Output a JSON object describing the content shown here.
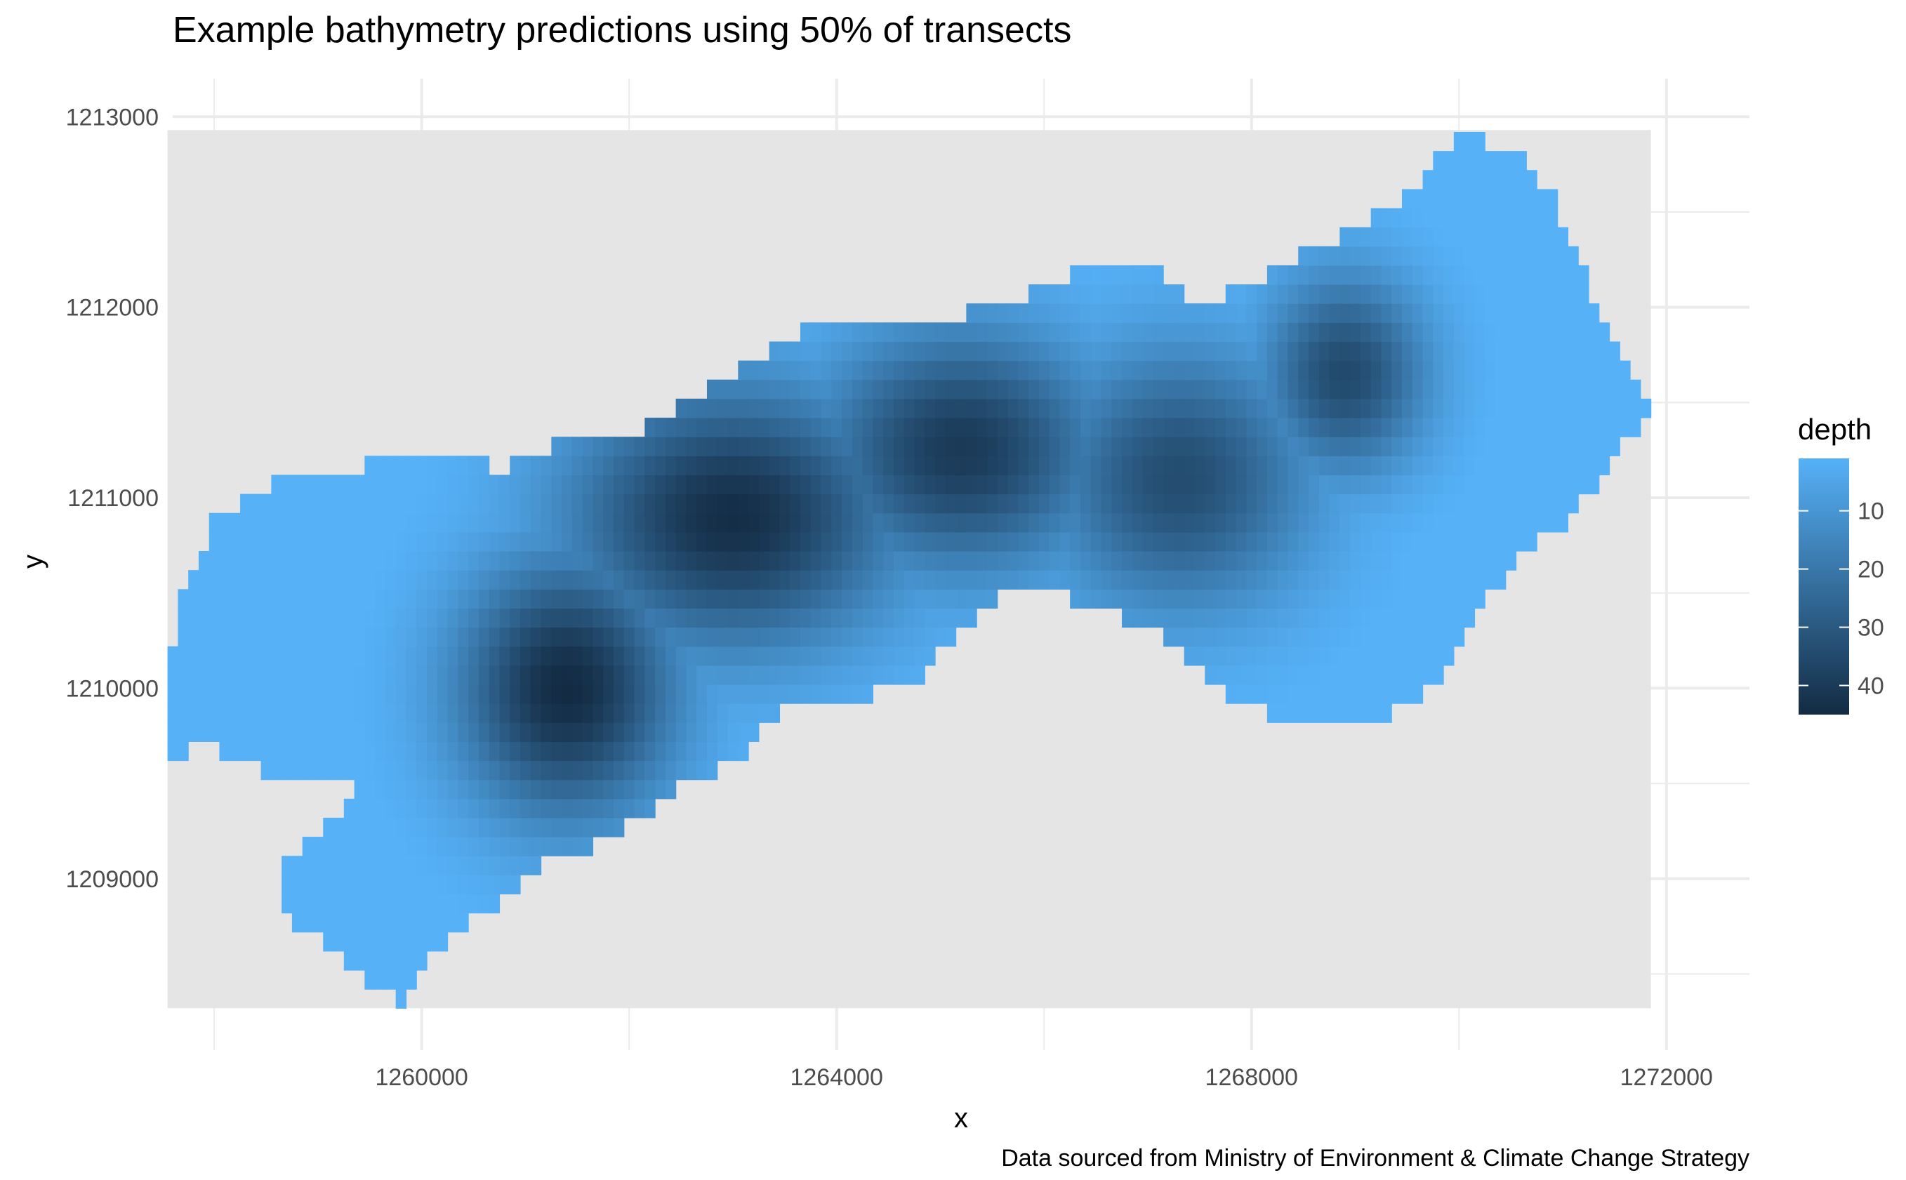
{
  "chart_data": {
    "type": "heatmap",
    "title": "Example bathymetry predictions using 50% of transects",
    "xlabel": "x",
    "ylabel": "y",
    "caption": "Data sourced from Ministry of Environment & Climate Change Strategy",
    "xlim": [
      1257600,
      1272800
    ],
    "ylim": [
      1208100,
      1213200
    ],
    "x_ticks": [
      1260000,
      1264000,
      1268000,
      1272000
    ],
    "x_tick_labels": [
      "1260000",
      "1264000",
      "1268000",
      "1272000"
    ],
    "y_ticks": [
      1209000,
      1210000,
      1211000,
      1212000,
      1213000
    ],
    "y_tick_labels": [
      "1209000",
      "1210000",
      "1211000",
      "1212000",
      "1213000"
    ],
    "panel_extent": {
      "x": [
        1257550,
        1271850
      ],
      "y": [
        1208320,
        1212930
      ]
    },
    "grid": true,
    "panel_background": "#e5e5e5",
    "legend": {
      "title": "depth",
      "position": "right",
      "ticks": [
        10,
        20,
        30,
        40
      ],
      "tick_labels": [
        "10",
        "20",
        "30",
        "40"
      ],
      "range": [
        1,
        45
      ],
      "color_low": "#56b1f7",
      "color_high": "#132b43"
    },
    "cell_size": 100,
    "lake_outline": [
      [
        1257550,
        1210100
      ],
      [
        1257700,
        1210500
      ],
      [
        1258000,
        1210900
      ],
      [
        1258700,
        1211100
      ],
      [
        1259300,
        1211150
      ],
      [
        1259800,
        1211200
      ],
      [
        1260300,
        1211250
      ],
      [
        1260800,
        1211150
      ],
      [
        1261400,
        1211300
      ],
      [
        1262000,
        1211300
      ],
      [
        1262500,
        1211500
      ],
      [
        1263000,
        1211650
      ],
      [
        1263700,
        1211900
      ],
      [
        1264200,
        1211950
      ],
      [
        1264800,
        1211900
      ],
      [
        1265400,
        1212000
      ],
      [
        1266000,
        1212100
      ],
      [
        1266500,
        1212250
      ],
      [
        1267000,
        1212250
      ],
      [
        1267500,
        1212000
      ],
      [
        1268100,
        1212150
      ],
      [
        1268500,
        1212300
      ],
      [
        1269000,
        1212400
      ],
      [
        1269500,
        1212600
      ],
      [
        1270000,
        1212900
      ],
      [
        1270500,
        1212850
      ],
      [
        1270900,
        1212600
      ],
      [
        1271200,
        1212200
      ],
      [
        1271500,
        1211800
      ],
      [
        1271850,
        1211450
      ],
      [
        1271500,
        1211200
      ],
      [
        1271100,
        1210900
      ],
      [
        1270600,
        1210700
      ],
      [
        1270200,
        1210400
      ],
      [
        1269800,
        1210000
      ],
      [
        1269300,
        1209850
      ],
      [
        1268700,
        1209850
      ],
      [
        1268200,
        1209850
      ],
      [
        1267700,
        1210000
      ],
      [
        1267100,
        1210300
      ],
      [
        1266600,
        1210400
      ],
      [
        1266100,
        1210500
      ],
      [
        1265600,
        1210500
      ],
      [
        1265200,
        1210300
      ],
      [
        1264700,
        1210000
      ],
      [
        1264100,
        1209950
      ],
      [
        1263500,
        1209900
      ],
      [
        1263000,
        1209600
      ],
      [
        1262400,
        1209450
      ],
      [
        1261800,
        1209200
      ],
      [
        1261200,
        1209100
      ],
      [
        1260700,
        1208850
      ],
      [
        1260200,
        1208650
      ],
      [
        1259800,
        1208350
      ],
      [
        1259400,
        1208500
      ],
      [
        1259000,
        1208700
      ],
      [
        1258600,
        1208800
      ],
      [
        1258700,
        1209100
      ],
      [
        1259100,
        1209300
      ],
      [
        1259500,
        1209550
      ],
      [
        1258500,
        1209550
      ],
      [
        1258000,
        1209700
      ],
      [
        1257550,
        1209650
      ]
    ],
    "depth_basins": [
      {
        "center": [
          1261400,
          1210000
        ],
        "radius": [
          1000,
          650
        ],
        "depth": 45
      },
      {
        "center": [
          1263000,
          1210900
        ],
        "radius": [
          1500,
          650
        ],
        "depth": 44
      },
      {
        "center": [
          1265200,
          1211250
        ],
        "radius": [
          1300,
          600
        ],
        "depth": 40
      },
      {
        "center": [
          1267300,
          1211100
        ],
        "radius": [
          1200,
          650
        ],
        "depth": 34
      },
      {
        "center": [
          1268900,
          1211650
        ],
        "radius": [
          750,
          500
        ],
        "depth": 35
      }
    ]
  }
}
